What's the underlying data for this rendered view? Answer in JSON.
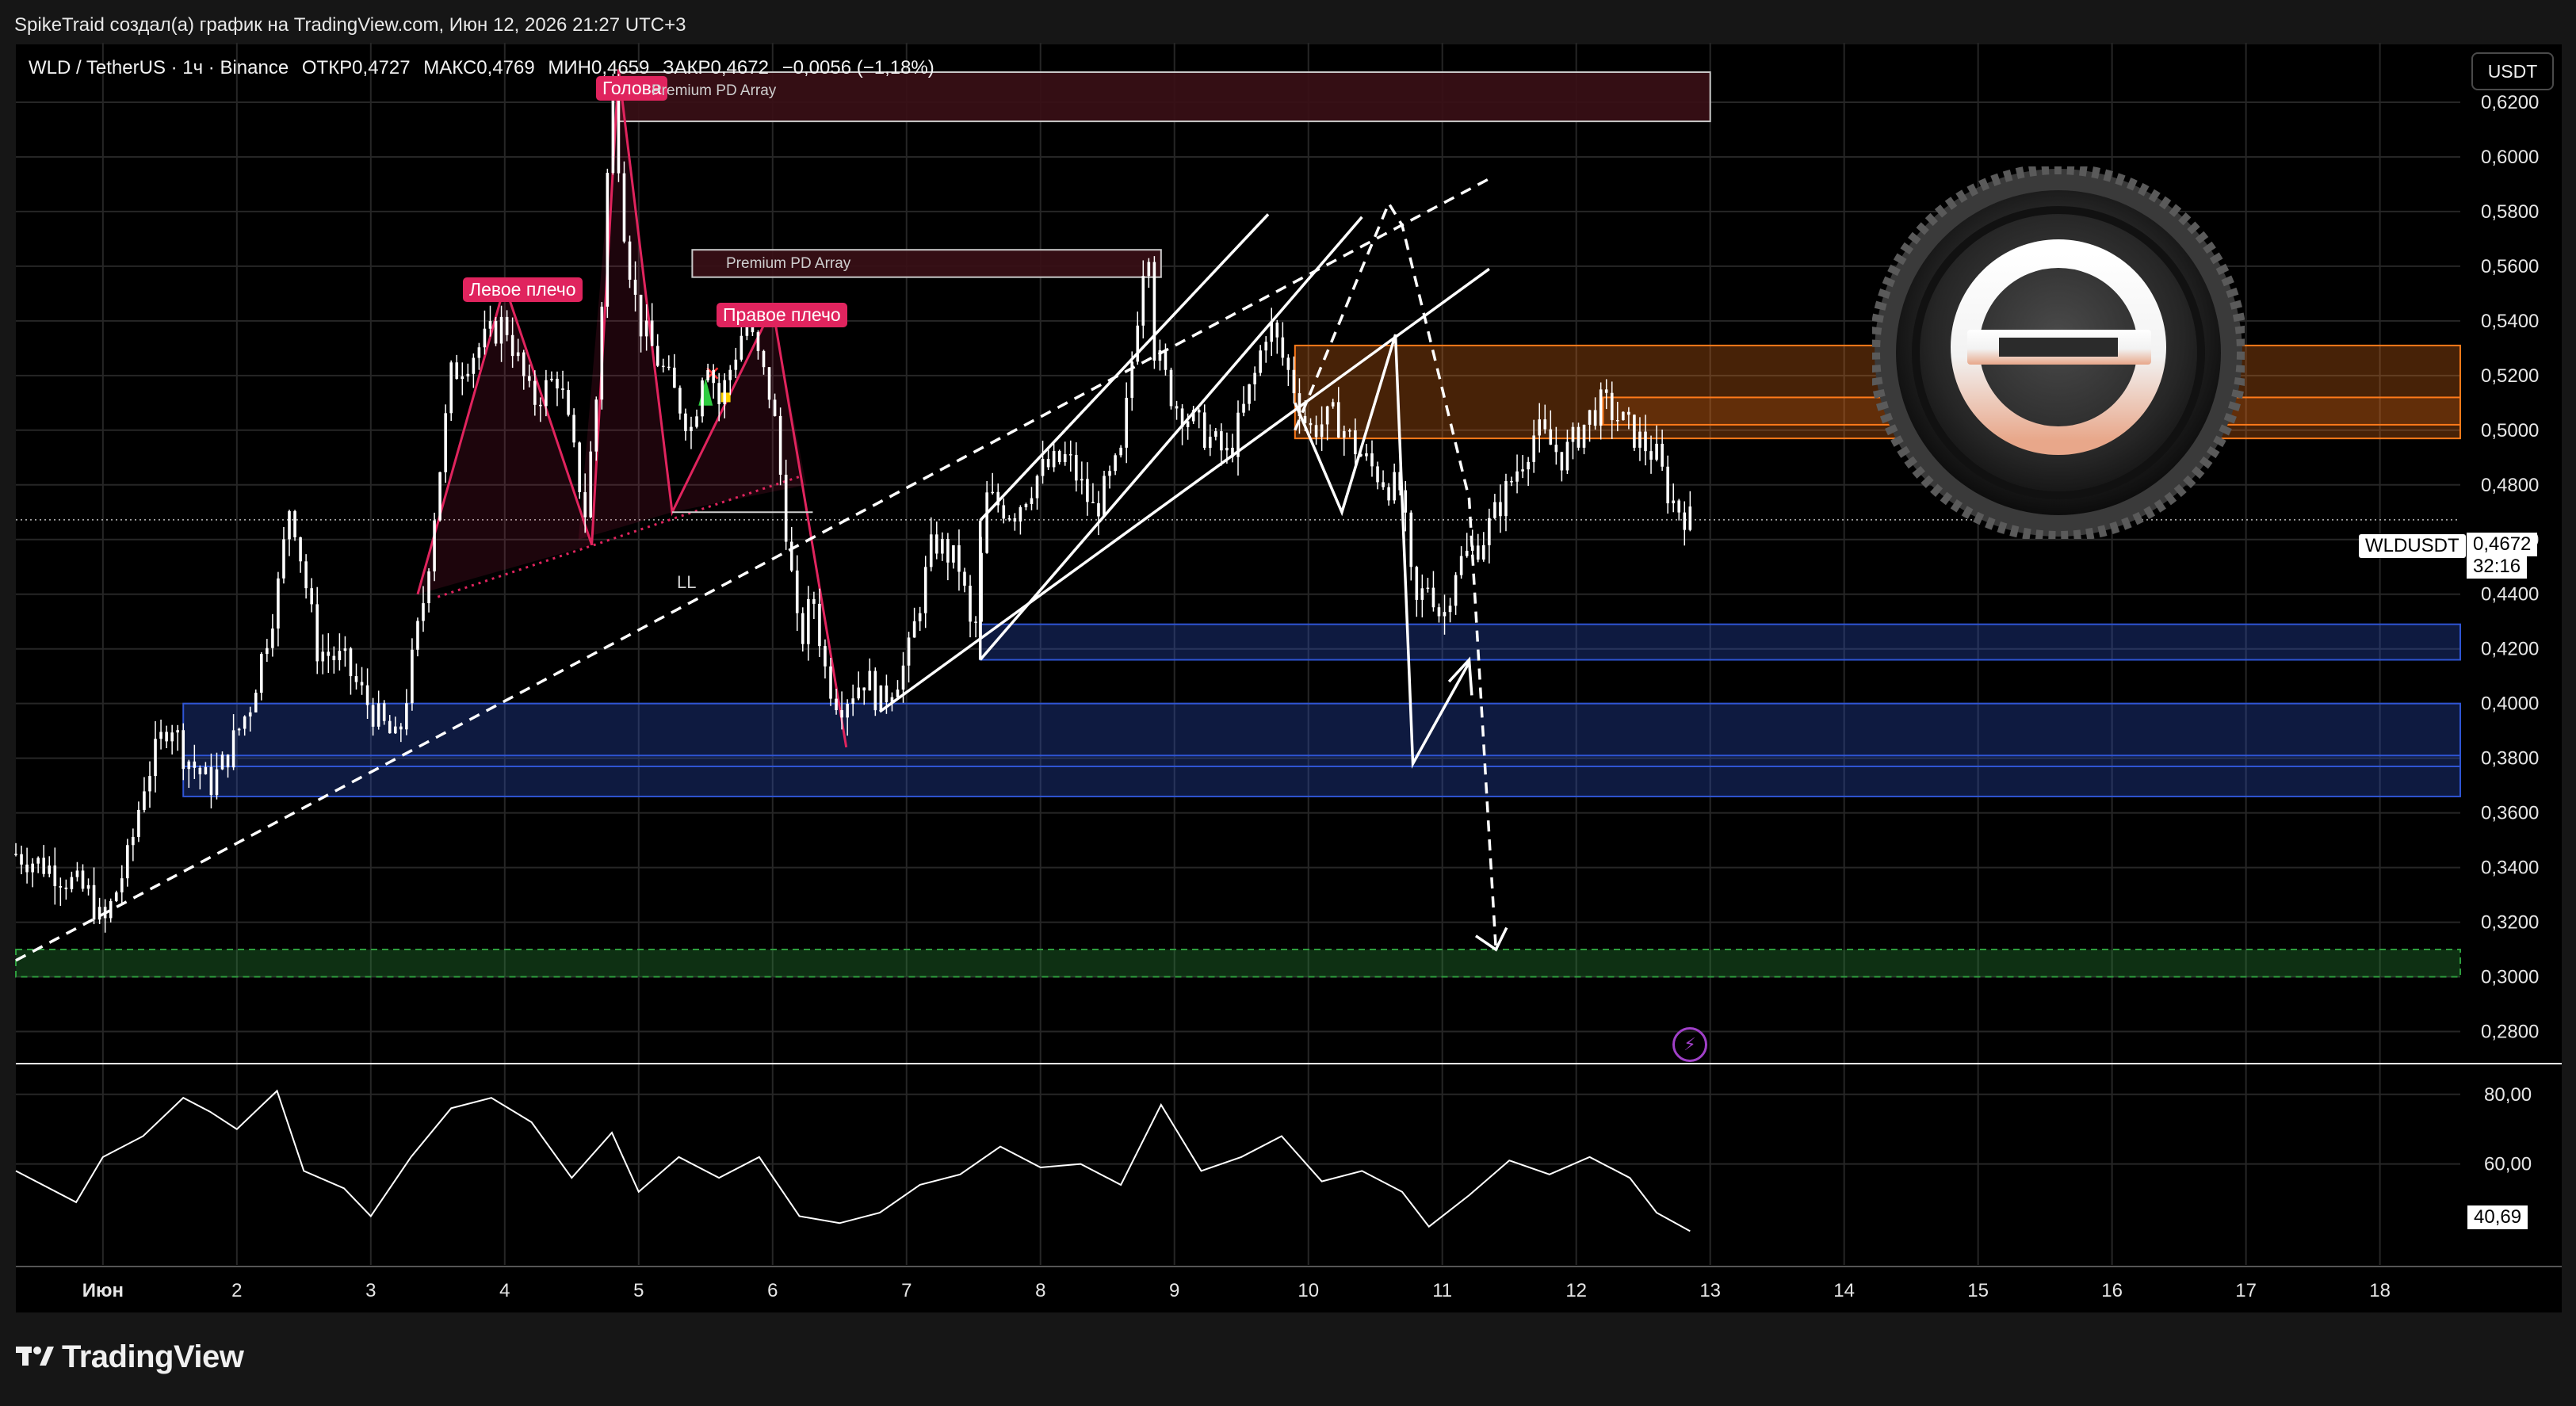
{
  "header": {
    "caption": "SpikeTraid создал(а) график на TradingView.com, Июн 12, 2026 21:27 UTC+3"
  },
  "symbol_line": {
    "symbol": "WLD / TetherUS · 1ч · Binance",
    "open": "ОТКР0,4727",
    "high": "МАКС0,4769",
    "low": "МИН0,4659",
    "close": "ЗАКР0,4672",
    "change": "−0,0056 (−1,18%)"
  },
  "currency_button": "USDT",
  "price_tags": {
    "symbol": "WLDUSDT",
    "last_price": "0,4672",
    "countdown": "32:16"
  },
  "oscillator_tag": "40,69",
  "annotations": {
    "left_shoulder": "Левое плечо",
    "head": "Голова",
    "right_shoulder": "Правое плечо",
    "premium_pd_1": "Premium PD Array",
    "premium_pd_2": "Premium PD Array",
    "ll": "LL"
  },
  "footer_logo": "TradingView",
  "colors": {
    "background": "#000000",
    "candle": "#ffffff",
    "pattern": "#e0245e",
    "supply_zone": "#ff7a1a",
    "demand_zone": "#2f55d4",
    "target_zone": "#2e9e3e",
    "premium_zone": "#3a0f16"
  },
  "chart_data": [
    {
      "type": "candlestick",
      "title": "WLD / TetherUS · 1ч · Binance",
      "xlabel": "",
      "ylabel": "",
      "y_axis_side": "right",
      "x_tick_labels": [
        "Июн",
        "2",
        "3",
        "4",
        "5",
        "6",
        "7",
        "8",
        "9",
        "10",
        "11",
        "12",
        "13",
        "14",
        "15",
        "16",
        "17",
        "18"
      ],
      "x_tick_days": [
        1,
        2,
        3,
        4,
        5,
        6,
        7,
        8,
        9,
        10,
        11,
        12,
        13,
        14,
        15,
        16,
        17,
        18
      ],
      "y_tick_values": [
        0.28,
        0.3,
        0.32,
        0.34,
        0.36,
        0.38,
        0.4,
        0.42,
        0.44,
        0.46,
        0.48,
        0.5,
        0.52,
        0.54,
        0.56,
        0.58,
        0.6,
        0.62
      ],
      "y_tick_labels": [
        "0,2800",
        "0,3000",
        "0,3200",
        "0,3400",
        "0,3600",
        "0,3800",
        "0,4000",
        "0,4200",
        "0,4400",
        "0,4600",
        "0,4800",
        "0,5000",
        "0,5200",
        "0,5400",
        "0,5600",
        "0,5800",
        "0,6000",
        "0,6200"
      ],
      "ylim": [
        0.27,
        0.64
      ],
      "xlim": [
        0.35,
        18.6
      ],
      "price_path": {
        "x": [
          0.35,
          0.6,
          0.9,
          1.0,
          1.2,
          1.3,
          1.5,
          1.6,
          1.8,
          1.9,
          2.1,
          2.3,
          2.4,
          2.6,
          2.8,
          3.0,
          3.2,
          3.4,
          3.6,
          3.8,
          4.0,
          4.2,
          4.4,
          4.6,
          4.7,
          4.8,
          4.9,
          5.0,
          5.2,
          5.4,
          5.5,
          5.6,
          5.8,
          6.0,
          6.1,
          6.2,
          6.3,
          6.4,
          6.5,
          6.7,
          6.8,
          7.0,
          7.2,
          7.4,
          7.5,
          7.6,
          7.8,
          8.0,
          8.2,
          8.4,
          8.6,
          8.8,
          8.85,
          9.0,
          9.2,
          9.4,
          9.6,
          9.7,
          9.9,
          10.0,
          10.2,
          10.4,
          10.6,
          10.7,
          10.75,
          10.8,
          10.9,
          11.0,
          11.1,
          11.3,
          11.5,
          11.7,
          11.9,
          12.1,
          12.2,
          12.4,
          12.6,
          12.7,
          12.85
        ],
        "y": [
          0.345,
          0.34,
          0.33,
          0.318,
          0.345,
          0.37,
          0.395,
          0.382,
          0.37,
          0.378,
          0.4,
          0.44,
          0.475,
          0.42,
          0.415,
          0.398,
          0.385,
          0.44,
          0.52,
          0.53,
          0.54,
          0.51,
          0.52,
          0.47,
          0.52,
          0.63,
          0.57,
          0.54,
          0.52,
          0.5,
          0.53,
          0.51,
          0.54,
          0.51,
          0.465,
          0.42,
          0.44,
          0.41,
          0.4,
          0.41,
          0.4,
          0.415,
          0.46,
          0.45,
          0.42,
          0.475,
          0.47,
          0.485,
          0.49,
          0.47,
          0.49,
          0.575,
          0.53,
          0.51,
          0.5,
          0.49,
          0.52,
          0.54,
          0.515,
          0.5,
          0.505,
          0.49,
          0.48,
          0.478,
          0.45,
          0.435,
          0.445,
          0.43,
          0.45,
          0.46,
          0.48,
          0.5,
          0.49,
          0.505,
          0.51,
          0.5,
          0.49,
          0.475,
          0.4672
        ]
      },
      "last_price": 0.4672,
      "zones": [
        {
          "name": "premium-pd-array-top",
          "y_from": 0.613,
          "y_to": 0.631,
          "x_from": 4.85,
          "x_to": 13.0
        },
        {
          "name": "premium-pd-array-mid",
          "y_from": 0.556,
          "y_to": 0.566,
          "x_from": 5.4,
          "x_to": 8.9
        },
        {
          "name": "supply-zone",
          "y_from": 0.497,
          "y_to": 0.531,
          "x_from": 9.9,
          "x_to": 18.6
        },
        {
          "name": "supply-zone-inner",
          "y_from": 0.502,
          "y_to": 0.512,
          "x_from": 12.2,
          "x_to": 18.6
        },
        {
          "name": "demand-zone-upper",
          "y_from": 0.416,
          "y_to": 0.429,
          "x_from": 7.55,
          "x_to": 18.6
        },
        {
          "name": "demand-zone-lower",
          "y_from": 0.366,
          "y_to": 0.4,
          "x_from": 1.6,
          "x_to": 18.6
        },
        {
          "name": "target-zone",
          "y_from": 0.3,
          "y_to": 0.31,
          "x_from": 0.35,
          "x_to": 18.6
        }
      ]
    },
    {
      "type": "line",
      "title": "",
      "xlabel": "",
      "ylabel": "",
      "y_tick_values": [
        60,
        80
      ],
      "y_tick_labels": [
        "60,00",
        "80,00"
      ],
      "ylim": [
        31,
        87
      ],
      "x": [
        0.35,
        0.8,
        1.0,
        1.3,
        1.6,
        1.8,
        2.0,
        2.3,
        2.5,
        2.8,
        3.0,
        3.3,
        3.6,
        3.9,
        4.2,
        4.5,
        4.8,
        5.0,
        5.3,
        5.6,
        5.9,
        6.2,
        6.5,
        6.8,
        7.1,
        7.4,
        7.7,
        8.0,
        8.3,
        8.6,
        8.9,
        9.2,
        9.5,
        9.8,
        10.1,
        10.4,
        10.7,
        10.9,
        11.2,
        11.5,
        11.8,
        12.1,
        12.4,
        12.6,
        12.85
      ],
      "y": [
        58,
        49,
        62,
        68,
        79,
        75,
        70,
        81,
        58,
        53,
        45,
        62,
        76,
        79,
        72,
        56,
        69,
        52,
        62,
        56,
        62,
        45,
        43,
        46,
        54,
        57,
        65,
        59,
        60,
        54,
        77,
        58,
        62,
        68,
        55,
        58,
        52,
        42,
        51,
        61,
        57,
        62,
        56,
        46,
        40.69
      ]
    }
  ]
}
